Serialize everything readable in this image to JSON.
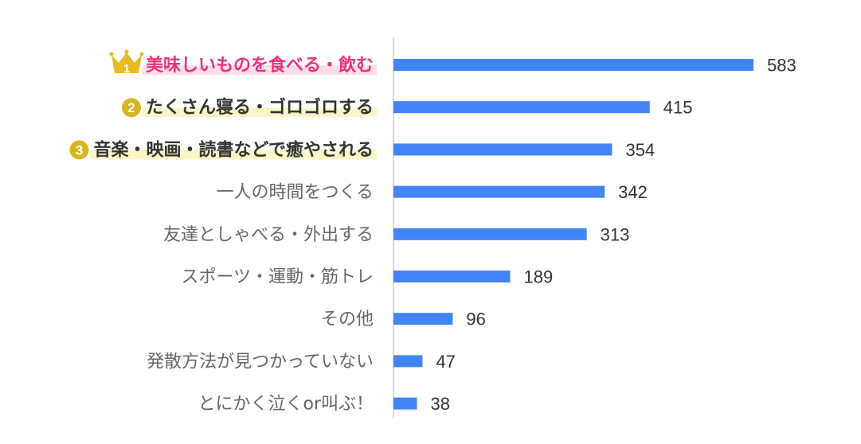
{
  "chart_data": {
    "type": "bar",
    "orientation": "horizontal",
    "categories": [
      "美味しいものを食べる・飲む",
      "たくさん寝る・ゴロゴロする",
      "音楽・映画・読書などで癒やされる",
      "一人の時間をつくる",
      "友達としゃべる・外出する",
      "スポーツ・運動・筋トレ",
      "その他",
      "発散方法が見つかっていない",
      "とにかく泣くor叫ぶ！"
    ],
    "values": [
      583,
      415,
      354,
      342,
      313,
      189,
      96,
      47,
      38
    ],
    "ranks": [
      "1",
      "2",
      "3"
    ],
    "xlim": [
      0,
      583
    ],
    "grid": false,
    "legend": "none",
    "colors": {
      "bar": "#4285f4",
      "axis": "#cccccc",
      "label": "#666666",
      "label_top": "#333333",
      "rank1_text": "#e8337a",
      "rank1_highlight": "#fcdde9",
      "highlight": "#fbf6c6",
      "badge_gold": "#d9b41e",
      "crown": "#e8b923"
    },
    "icons": [
      "crown-icon",
      "rank-badge-icon"
    ]
  }
}
